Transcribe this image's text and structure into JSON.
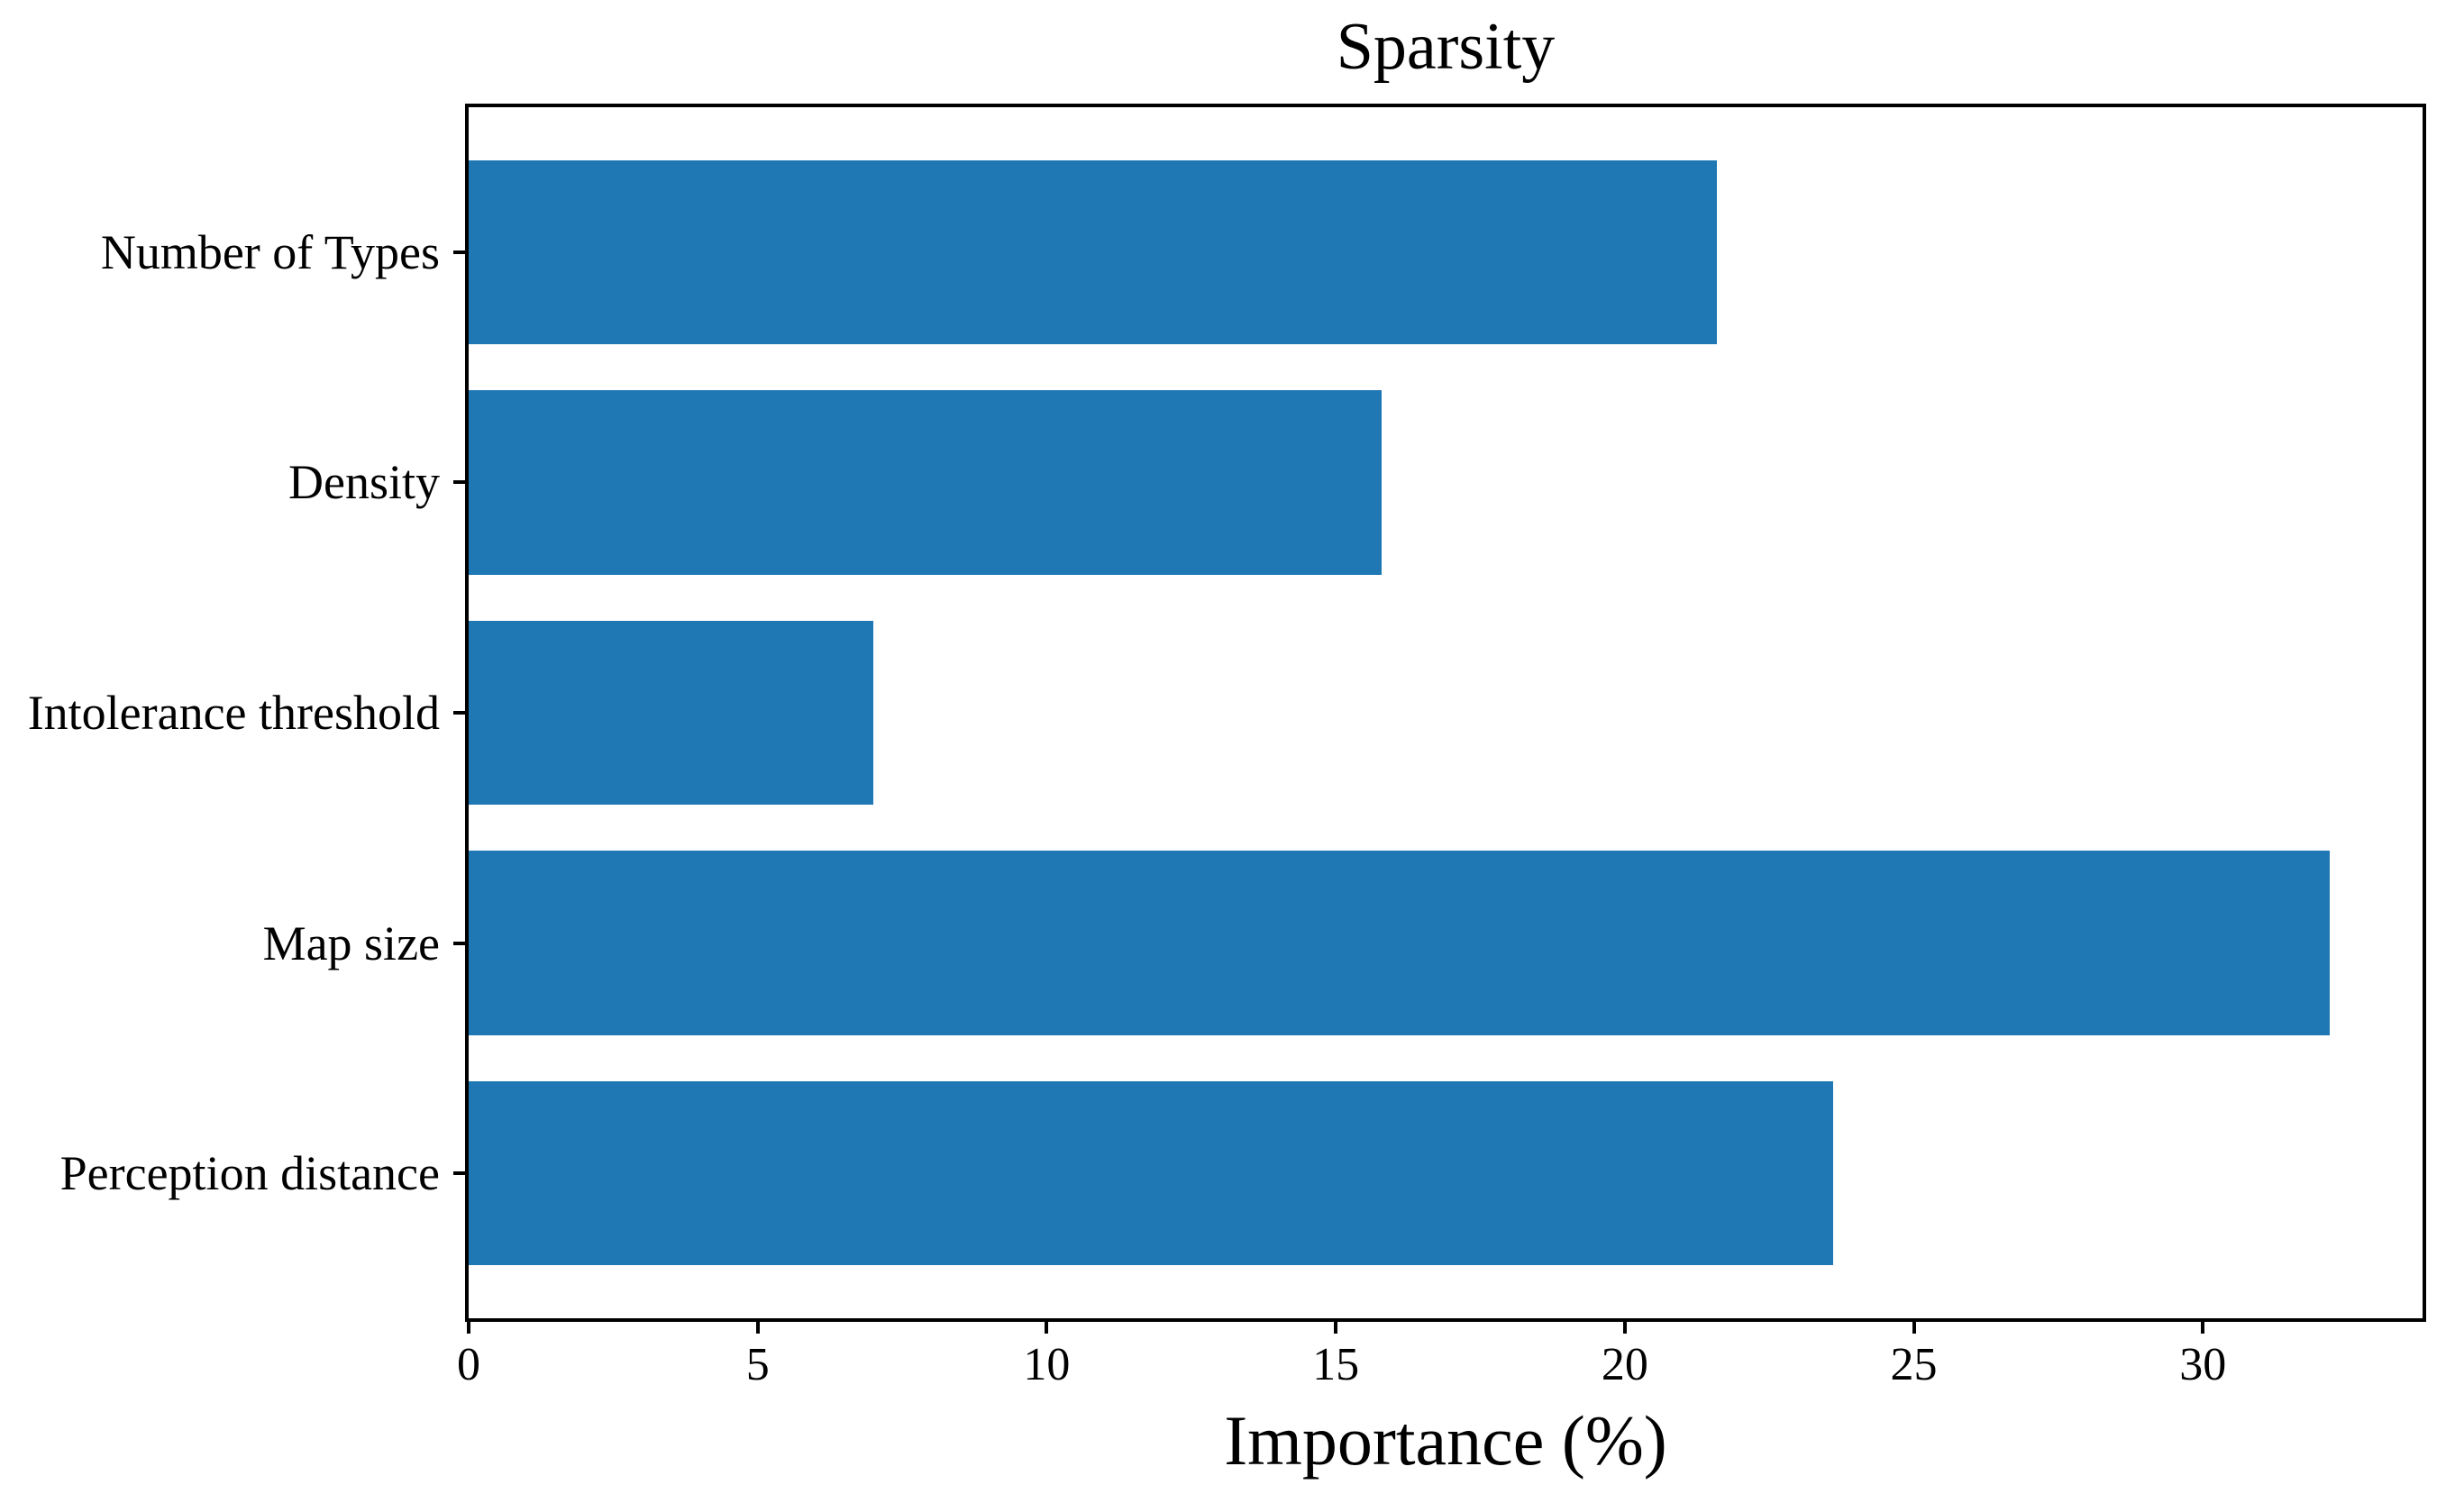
{
  "chart_data": {
    "type": "bar",
    "orientation": "horizontal",
    "title": "Sparsity",
    "xlabel": "Importance (%)",
    "ylabel": "",
    "categories": [
      "Number of Types",
      "Density",
      "Intolerance threshold",
      "Map size",
      "Perception distance"
    ],
    "values": [
      21.6,
      15.8,
      7.0,
      32.2,
      23.6
    ],
    "xticks": [
      0,
      5,
      10,
      15,
      20,
      25,
      30
    ],
    "xlim": [
      0,
      33.8
    ],
    "grid": false,
    "legend": null,
    "bar_color": "#1f77b4",
    "axis_color": "#000000",
    "background_color": "#ffffff"
  }
}
